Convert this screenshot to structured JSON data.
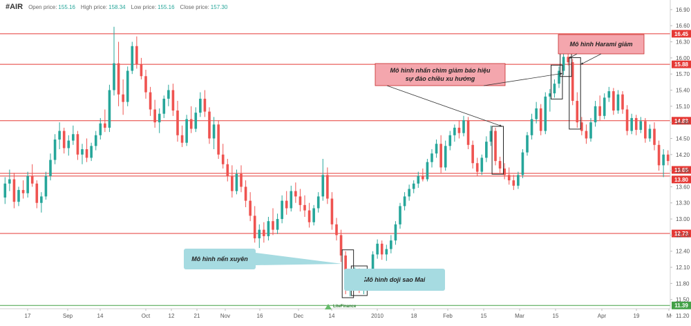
{
  "header": {
    "symbol": "#AIR",
    "open_label": "Open price:",
    "open_value": "155.16",
    "high_label": "High price:",
    "high_value": "158.34",
    "low_label": "Low price:",
    "low_value": "155.16",
    "close_label": "Close price:",
    "close_value": "157.30"
  },
  "logo_text": "LiteFinance",
  "colors": {
    "up": "#26a69a",
    "down": "#ef5350",
    "resistance": "#e53935",
    "support": "#43a047",
    "note_red_bg": "#f4a6ad",
    "note_blue_bg": "#a6dbe1"
  },
  "chart_data": {
    "type": "candlestick",
    "ylim": [
      11.2,
      16.95
    ],
    "y_ticks": [
      "16.90",
      "16.60",
      "16.30",
      "16.00",
      "15.70",
      "15.40",
      "15.10",
      "14.80",
      "14.50",
      "14.20",
      "13.90",
      "13.60",
      "13.30",
      "13.00",
      "12.70",
      "12.40",
      "12.10",
      "11.80",
      "11.50",
      "11.20"
    ],
    "x_ticks": [
      "17",
      "Sep",
      "14",
      "Oct",
      "12",
      "21",
      "Nov",
      "16",
      "Dec",
      "14",
      "2010",
      "18",
      "Feb",
      "15",
      "Mar",
      "15",
      "Apr",
      "19",
      "M"
    ],
    "price_levels": [
      {
        "label": "16.45",
        "value": 16.45,
        "color": "resistance"
      },
      {
        "label": "15.88",
        "value": 15.88,
        "color": "resistance"
      },
      {
        "label": "14.83",
        "value": 14.83,
        "color": "resistance"
      },
      {
        "label": "13.85",
        "value": 13.85,
        "color": "resistance"
      },
      {
        "label": "13.80",
        "value": 13.8,
        "color": "resistance"
      },
      {
        "label": "12.73",
        "value": 12.73,
        "color": "resistance"
      },
      {
        "label": "11.39",
        "value": 11.39,
        "color": "support"
      }
    ],
    "candles": [
      {
        "o": 13.4,
        "h": 13.78,
        "l": 13.28,
        "c": 13.66
      },
      {
        "o": 13.66,
        "h": 13.92,
        "l": 13.52,
        "c": 13.74
      },
      {
        "o": 13.74,
        "h": 13.86,
        "l": 13.2,
        "c": 13.32
      },
      {
        "o": 13.32,
        "h": 13.6,
        "l": 13.24,
        "c": 13.54
      },
      {
        "o": 13.54,
        "h": 13.72,
        "l": 13.38,
        "c": 13.48
      },
      {
        "o": 13.48,
        "h": 13.88,
        "l": 13.4,
        "c": 13.8
      },
      {
        "o": 13.8,
        "h": 14.02,
        "l": 13.6,
        "c": 13.66
      },
      {
        "o": 13.66,
        "h": 13.72,
        "l": 13.2,
        "c": 13.3
      },
      {
        "o": 13.3,
        "h": 13.5,
        "l": 13.12,
        "c": 13.42
      },
      {
        "o": 13.42,
        "h": 13.88,
        "l": 13.36,
        "c": 13.8
      },
      {
        "o": 13.8,
        "h": 14.22,
        "l": 13.72,
        "c": 14.1
      },
      {
        "o": 14.1,
        "h": 14.58,
        "l": 14.02,
        "c": 14.48
      },
      {
        "o": 14.48,
        "h": 14.8,
        "l": 14.3,
        "c": 14.64
      },
      {
        "o": 14.64,
        "h": 14.7,
        "l": 14.22,
        "c": 14.32
      },
      {
        "o": 14.32,
        "h": 14.56,
        "l": 14.18,
        "c": 14.46
      },
      {
        "o": 14.46,
        "h": 14.74,
        "l": 14.38,
        "c": 14.58
      },
      {
        "o": 14.58,
        "h": 14.64,
        "l": 14.1,
        "c": 14.2
      },
      {
        "o": 14.2,
        "h": 14.4,
        "l": 14.02,
        "c": 14.3
      },
      {
        "o": 14.3,
        "h": 14.5,
        "l": 14.06,
        "c": 14.14
      },
      {
        "o": 14.14,
        "h": 14.42,
        "l": 14.08,
        "c": 14.36
      },
      {
        "o": 14.36,
        "h": 14.64,
        "l": 14.28,
        "c": 14.56
      },
      {
        "o": 14.56,
        "h": 14.88,
        "l": 14.48,
        "c": 14.78
      },
      {
        "o": 14.78,
        "h": 15.04,
        "l": 14.62,
        "c": 14.7
      },
      {
        "o": 14.7,
        "h": 15.5,
        "l": 14.62,
        "c": 15.4
      },
      {
        "o": 15.4,
        "h": 16.58,
        "l": 15.3,
        "c": 15.9
      },
      {
        "o": 15.9,
        "h": 16.3,
        "l": 15.1,
        "c": 15.32
      },
      {
        "o": 15.32,
        "h": 15.6,
        "l": 14.94,
        "c": 15.18
      },
      {
        "o": 15.18,
        "h": 15.84,
        "l": 15.1,
        "c": 15.76
      },
      {
        "o": 15.76,
        "h": 16.3,
        "l": 15.7,
        "c": 16.22
      },
      {
        "o": 16.22,
        "h": 16.4,
        "l": 15.8,
        "c": 15.88
      },
      {
        "o": 15.88,
        "h": 16.0,
        "l": 15.6,
        "c": 15.66
      },
      {
        "o": 15.66,
        "h": 15.78,
        "l": 15.24,
        "c": 15.36
      },
      {
        "o": 15.36,
        "h": 15.46,
        "l": 14.92,
        "c": 15.04
      },
      {
        "o": 15.04,
        "h": 15.22,
        "l": 14.7,
        "c": 14.8
      },
      {
        "o": 14.8,
        "h": 15.06,
        "l": 14.6,
        "c": 14.96
      },
      {
        "o": 14.96,
        "h": 15.3,
        "l": 14.88,
        "c": 15.24
      },
      {
        "o": 15.24,
        "h": 15.5,
        "l": 15.1,
        "c": 15.4
      },
      {
        "o": 15.4,
        "h": 15.52,
        "l": 14.92,
        "c": 15.02
      },
      {
        "o": 15.02,
        "h": 15.2,
        "l": 14.44,
        "c": 14.56
      },
      {
        "o": 14.56,
        "h": 14.74,
        "l": 14.34,
        "c": 14.42
      },
      {
        "o": 14.42,
        "h": 14.94,
        "l": 14.36,
        "c": 14.86
      },
      {
        "o": 14.86,
        "h": 15.1,
        "l": 14.6,
        "c": 14.68
      },
      {
        "o": 14.68,
        "h": 15.08,
        "l": 14.62,
        "c": 14.98
      },
      {
        "o": 14.98,
        "h": 15.36,
        "l": 14.9,
        "c": 15.24
      },
      {
        "o": 15.24,
        "h": 15.4,
        "l": 14.9,
        "c": 15.0
      },
      {
        "o": 15.0,
        "h": 15.08,
        "l": 14.4,
        "c": 14.5
      },
      {
        "o": 14.5,
        "h": 14.9,
        "l": 14.3,
        "c": 14.76
      },
      {
        "o": 14.76,
        "h": 14.84,
        "l": 14.12,
        "c": 14.2
      },
      {
        "o": 14.2,
        "h": 14.4,
        "l": 13.94,
        "c": 14.02
      },
      {
        "o": 14.02,
        "h": 14.12,
        "l": 13.7,
        "c": 13.8
      },
      {
        "o": 13.8,
        "h": 14.0,
        "l": 13.4,
        "c": 13.52
      },
      {
        "o": 13.52,
        "h": 13.92,
        "l": 13.46,
        "c": 13.84
      },
      {
        "o": 13.84,
        "h": 14.0,
        "l": 13.5,
        "c": 13.6
      },
      {
        "o": 13.6,
        "h": 13.72,
        "l": 13.22,
        "c": 13.34
      },
      {
        "o": 13.34,
        "h": 13.5,
        "l": 12.96,
        "c": 13.06
      },
      {
        "o": 13.06,
        "h": 13.24,
        "l": 12.56,
        "c": 12.64
      },
      {
        "o": 12.64,
        "h": 12.9,
        "l": 12.46,
        "c": 12.8
      },
      {
        "o": 12.8,
        "h": 12.94,
        "l": 12.56,
        "c": 12.68
      },
      {
        "o": 12.68,
        "h": 13.04,
        "l": 12.6,
        "c": 12.96
      },
      {
        "o": 12.96,
        "h": 13.2,
        "l": 12.7,
        "c": 12.8
      },
      {
        "o": 12.8,
        "h": 13.1,
        "l": 12.72,
        "c": 13.0
      },
      {
        "o": 13.0,
        "h": 13.44,
        "l": 12.92,
        "c": 13.34
      },
      {
        "o": 13.34,
        "h": 13.52,
        "l": 13.08,
        "c": 13.2
      },
      {
        "o": 13.2,
        "h": 13.62,
        "l": 13.14,
        "c": 13.52
      },
      {
        "o": 13.52,
        "h": 13.68,
        "l": 13.3,
        "c": 13.42
      },
      {
        "o": 13.42,
        "h": 13.56,
        "l": 13.14,
        "c": 13.26
      },
      {
        "o": 13.26,
        "h": 13.44,
        "l": 13.04,
        "c": 13.16
      },
      {
        "o": 13.16,
        "h": 13.3,
        "l": 12.84,
        "c": 12.94
      },
      {
        "o": 12.94,
        "h": 13.26,
        "l": 12.88,
        "c": 13.2
      },
      {
        "o": 13.2,
        "h": 13.5,
        "l": 13.12,
        "c": 13.42
      },
      {
        "o": 13.42,
        "h": 14.12,
        "l": 13.34,
        "c": 13.82
      },
      {
        "o": 13.82,
        "h": 13.96,
        "l": 13.28,
        "c": 13.38
      },
      {
        "o": 13.38,
        "h": 13.5,
        "l": 12.8,
        "c": 12.9
      },
      {
        "o": 12.9,
        "h": 13.02,
        "l": 12.6,
        "c": 12.7
      },
      {
        "o": 12.7,
        "h": 12.8,
        "l": 12.2,
        "c": 12.32
      },
      {
        "o": 12.32,
        "h": 12.4,
        "l": 11.6,
        "c": 11.74
      },
      {
        "o": 11.74,
        "h": 11.94,
        "l": 11.56,
        "c": 11.84
      },
      {
        "o": 11.84,
        "h": 12.1,
        "l": 11.7,
        "c": 12.0
      },
      {
        "o": 12.0,
        "h": 12.08,
        "l": 11.62,
        "c": 11.72
      },
      {
        "o": 11.72,
        "h": 11.86,
        "l": 11.6,
        "c": 11.8
      },
      {
        "o": 11.8,
        "h": 12.06,
        "l": 11.74,
        "c": 12.0
      },
      {
        "o": 12.0,
        "h": 12.4,
        "l": 11.92,
        "c": 12.34
      },
      {
        "o": 12.34,
        "h": 12.62,
        "l": 12.26,
        "c": 12.54
      },
      {
        "o": 12.54,
        "h": 12.6,
        "l": 12.24,
        "c": 12.34
      },
      {
        "o": 12.34,
        "h": 12.52,
        "l": 12.22,
        "c": 12.44
      },
      {
        "o": 12.44,
        "h": 12.7,
        "l": 12.36,
        "c": 12.6
      },
      {
        "o": 12.6,
        "h": 12.96,
        "l": 12.52,
        "c": 12.9
      },
      {
        "o": 12.9,
        "h": 13.3,
        "l": 12.82,
        "c": 13.24
      },
      {
        "o": 13.24,
        "h": 13.5,
        "l": 13.16,
        "c": 13.42
      },
      {
        "o": 13.42,
        "h": 13.64,
        "l": 13.34,
        "c": 13.56
      },
      {
        "o": 13.56,
        "h": 13.72,
        "l": 13.48,
        "c": 13.66
      },
      {
        "o": 13.66,
        "h": 13.88,
        "l": 13.58,
        "c": 13.8
      },
      {
        "o": 13.8,
        "h": 13.94,
        "l": 13.7,
        "c": 13.74
      },
      {
        "o": 13.74,
        "h": 14.12,
        "l": 13.7,
        "c": 14.06
      },
      {
        "o": 14.06,
        "h": 14.3,
        "l": 13.96,
        "c": 14.22
      },
      {
        "o": 14.22,
        "h": 14.48,
        "l": 14.14,
        "c": 14.4
      },
      {
        "o": 14.4,
        "h": 14.56,
        "l": 13.86,
        "c": 13.96
      },
      {
        "o": 13.96,
        "h": 14.46,
        "l": 13.9,
        "c": 14.36
      },
      {
        "o": 14.36,
        "h": 14.64,
        "l": 14.28,
        "c": 14.56
      },
      {
        "o": 14.56,
        "h": 14.76,
        "l": 14.44,
        "c": 14.7
      },
      {
        "o": 14.7,
        "h": 14.84,
        "l": 14.5,
        "c": 14.6
      },
      {
        "o": 14.6,
        "h": 14.92,
        "l": 14.54,
        "c": 14.84
      },
      {
        "o": 14.84,
        "h": 14.9,
        "l": 14.3,
        "c": 14.38
      },
      {
        "o": 14.38,
        "h": 14.46,
        "l": 13.94,
        "c": 14.04
      },
      {
        "o": 14.04,
        "h": 14.14,
        "l": 13.8,
        "c": 13.88
      },
      {
        "o": 13.88,
        "h": 14.2,
        "l": 13.82,
        "c": 14.14
      },
      {
        "o": 14.14,
        "h": 14.54,
        "l": 14.06,
        "c": 14.44
      },
      {
        "o": 14.44,
        "h": 14.74,
        "l": 14.36,
        "c": 14.64
      },
      {
        "o": 14.64,
        "h": 14.7,
        "l": 14.0,
        "c": 14.08
      },
      {
        "o": 14.08,
        "h": 14.16,
        "l": 13.86,
        "c": 13.94
      },
      {
        "o": 13.94,
        "h": 14.04,
        "l": 13.74,
        "c": 13.82
      },
      {
        "o": 13.82,
        "h": 13.96,
        "l": 13.64,
        "c": 13.72
      },
      {
        "o": 13.72,
        "h": 13.82,
        "l": 13.54,
        "c": 13.62
      },
      {
        "o": 13.62,
        "h": 13.88,
        "l": 13.56,
        "c": 13.82
      },
      {
        "o": 13.82,
        "h": 14.3,
        "l": 13.76,
        "c": 14.24
      },
      {
        "o": 14.24,
        "h": 14.62,
        "l": 14.18,
        "c": 14.56
      },
      {
        "o": 14.56,
        "h": 14.96,
        "l": 14.48,
        "c": 14.86
      },
      {
        "o": 14.86,
        "h": 15.18,
        "l": 14.78,
        "c": 15.06
      },
      {
        "o": 15.06,
        "h": 15.14,
        "l": 14.56,
        "c": 14.64
      },
      {
        "o": 14.64,
        "h": 15.36,
        "l": 14.58,
        "c": 15.28
      },
      {
        "o": 15.28,
        "h": 15.42,
        "l": 15.0,
        "c": 15.34
      },
      {
        "o": 15.34,
        "h": 15.6,
        "l": 15.26,
        "c": 15.52
      },
      {
        "o": 15.52,
        "h": 15.84,
        "l": 15.44,
        "c": 15.76
      },
      {
        "o": 15.76,
        "h": 16.1,
        "l": 15.68,
        "c": 16.02
      },
      {
        "o": 16.02,
        "h": 16.12,
        "l": 15.86,
        "c": 15.92
      },
      {
        "o": 15.92,
        "h": 15.98,
        "l": 15.12,
        "c": 15.2
      },
      {
        "o": 15.2,
        "h": 15.36,
        "l": 14.7,
        "c": 14.8
      },
      {
        "o": 14.8,
        "h": 14.9,
        "l": 14.56,
        "c": 14.64
      },
      {
        "o": 14.64,
        "h": 14.76,
        "l": 14.4,
        "c": 14.5
      },
      {
        "o": 14.5,
        "h": 14.88,
        "l": 14.44,
        "c": 14.8
      },
      {
        "o": 14.8,
        "h": 15.2,
        "l": 14.72,
        "c": 15.1
      },
      {
        "o": 15.1,
        "h": 15.3,
        "l": 14.84,
        "c": 14.92
      },
      {
        "o": 14.92,
        "h": 15.34,
        "l": 14.86,
        "c": 15.26
      },
      {
        "o": 15.26,
        "h": 15.46,
        "l": 15.18,
        "c": 15.38
      },
      {
        "o": 15.38,
        "h": 15.44,
        "l": 14.94,
        "c": 15.02
      },
      {
        "o": 15.02,
        "h": 15.4,
        "l": 14.96,
        "c": 15.32
      },
      {
        "o": 15.32,
        "h": 15.38,
        "l": 14.96,
        "c": 15.04
      },
      {
        "o": 15.04,
        "h": 15.12,
        "l": 14.56,
        "c": 14.64
      },
      {
        "o": 14.64,
        "h": 14.96,
        "l": 14.58,
        "c": 14.88
      },
      {
        "o": 14.88,
        "h": 14.94,
        "l": 14.56,
        "c": 14.66
      },
      {
        "o": 14.66,
        "h": 14.9,
        "l": 14.6,
        "c": 14.82
      },
      {
        "o": 14.82,
        "h": 14.88,
        "l": 14.42,
        "c": 14.5
      },
      {
        "o": 14.5,
        "h": 14.76,
        "l": 14.44,
        "c": 14.68
      },
      {
        "o": 14.68,
        "h": 14.8,
        "l": 14.28,
        "c": 14.38
      },
      {
        "o": 14.38,
        "h": 14.46,
        "l": 13.9,
        "c": 14.0
      },
      {
        "o": 14.0,
        "h": 14.3,
        "l": 13.78,
        "c": 14.2
      },
      {
        "o": 14.2,
        "h": 14.28,
        "l": 14.0,
        "c": 14.08
      }
    ],
    "annotations": [
      {
        "text": "Mô hình Harami giảm",
        "bg": "note_red_bg"
      },
      {
        "text": "Mô hình nhấn chìm giảm báo hiệu sự đảo chiều xu hướng",
        "bg": "note_red_bg"
      },
      {
        "text": "Mô hình nến xuyên",
        "bg": "note_blue_bg"
      },
      {
        "text": "Mô hình doji sao Mai",
        "bg": "note_blue_bg"
      }
    ]
  }
}
